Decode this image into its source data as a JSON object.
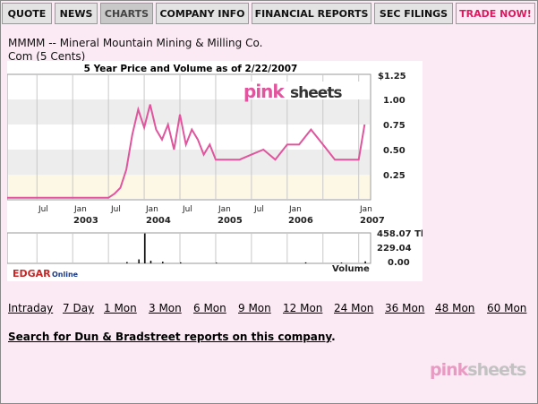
{
  "tabs": [
    {
      "label": "QUOTE"
    },
    {
      "label": "NEWS"
    },
    {
      "label": "CHARTS",
      "active": true
    },
    {
      "label": "COMPANY INFO"
    },
    {
      "label": "FINANCIAL REPORTS"
    },
    {
      "label": "SEC FILINGS"
    },
    {
      "label": "TRADE NOW!"
    }
  ],
  "company": {
    "title": "MMMM -- Mineral Mountain Mining & Milling Co.",
    "security": "Com (5 Cents)"
  },
  "chart": {
    "title": "5 Year Price and Volume as of 2/22/2007",
    "logo_pink": "pink",
    "logo_sheets": "sheets",
    "price_ticks": [
      "$1.25",
      "1.00",
      "0.75",
      "0.50",
      "0.25"
    ],
    "x_minor": [
      "Jul",
      "Jul",
      "Jul",
      "Jul"
    ],
    "x_major": [
      "Jan",
      "Jan",
      "Jan",
      "Jan",
      "Jan"
    ],
    "x_years": [
      "2003",
      "2004",
      "2005",
      "2006",
      "2007"
    ],
    "volume_ticks": [
      "458.07 Th",
      "229.04",
      "0.00"
    ],
    "volume_label": "Volume",
    "edgar": "EDGAR",
    "online": "Online"
  },
  "chart_data": [
    {
      "type": "line",
      "title": "5 Year Price and Volume as of 2/22/2007",
      "ylabel": "",
      "ylim": [
        0,
        1.25
      ],
      "series": [
        {
          "color": "#e0559d",
          "x": [
            "2002-02",
            "2002-06",
            "2002-10",
            "2003-01",
            "2003-04",
            "2003-07",
            "2003-08",
            "2003-09",
            "2003-10",
            "2003-11",
            "2003-12",
            "2004-01",
            "2004-02",
            "2004-03",
            "2004-04",
            "2004-05",
            "2004-06",
            "2004-07",
            "2004-08",
            "2004-09",
            "2004-10",
            "2004-11",
            "2004-12",
            "2005-01",
            "2005-03",
            "2005-05",
            "2005-07",
            "2005-09",
            "2005-11",
            "2006-01",
            "2006-03",
            "2006-05",
            "2006-07",
            "2006-09",
            "2006-11",
            "2007-01",
            "2007-02"
          ],
          "values": [
            0.02,
            0.02,
            0.02,
            0.02,
            0.02,
            0.02,
            0.06,
            0.12,
            0.3,
            0.65,
            0.9,
            0.72,
            0.95,
            0.7,
            0.6,
            0.75,
            0.5,
            0.85,
            0.55,
            0.7,
            0.6,
            0.45,
            0.55,
            0.4,
            0.4,
            0.4,
            0.45,
            0.5,
            0.4,
            0.55,
            0.55,
            0.7,
            0.55,
            0.4,
            0.4,
            0.4,
            0.75
          ]
        }
      ]
    },
    {
      "type": "bar",
      "ylabel": "Volume",
      "ylim": [
        0,
        458.07
      ],
      "values_label": "Th",
      "note": "sparse trading volume; one large spike near Jan 2004",
      "spikes": [
        {
          "x": "2003-10",
          "value": 20
        },
        {
          "x": "2003-12",
          "value": 60
        },
        {
          "x": "2004-01",
          "value": 450
        },
        {
          "x": "2004-02",
          "value": 40
        },
        {
          "x": "2004-04",
          "value": 25
        },
        {
          "x": "2004-07",
          "value": 15
        },
        {
          "x": "2005-01",
          "value": 10
        },
        {
          "x": "2006-04",
          "value": 15
        },
        {
          "x": "2006-10",
          "value": 12
        },
        {
          "x": "2007-02",
          "value": 30
        }
      ]
    }
  ],
  "periods": [
    "Intraday",
    "7 Day",
    "1 Mon",
    "3 Mon",
    "6 Mon",
    "9 Mon",
    "12 Mon",
    "24 Mon",
    "36 Mon",
    "48 Mon",
    "60 Mon"
  ],
  "dnb": {
    "link": "Search for Dun & Bradstreet reports on this company",
    "suffix": "."
  },
  "footer": {
    "pink": "pink",
    "sheets": "sheets"
  }
}
